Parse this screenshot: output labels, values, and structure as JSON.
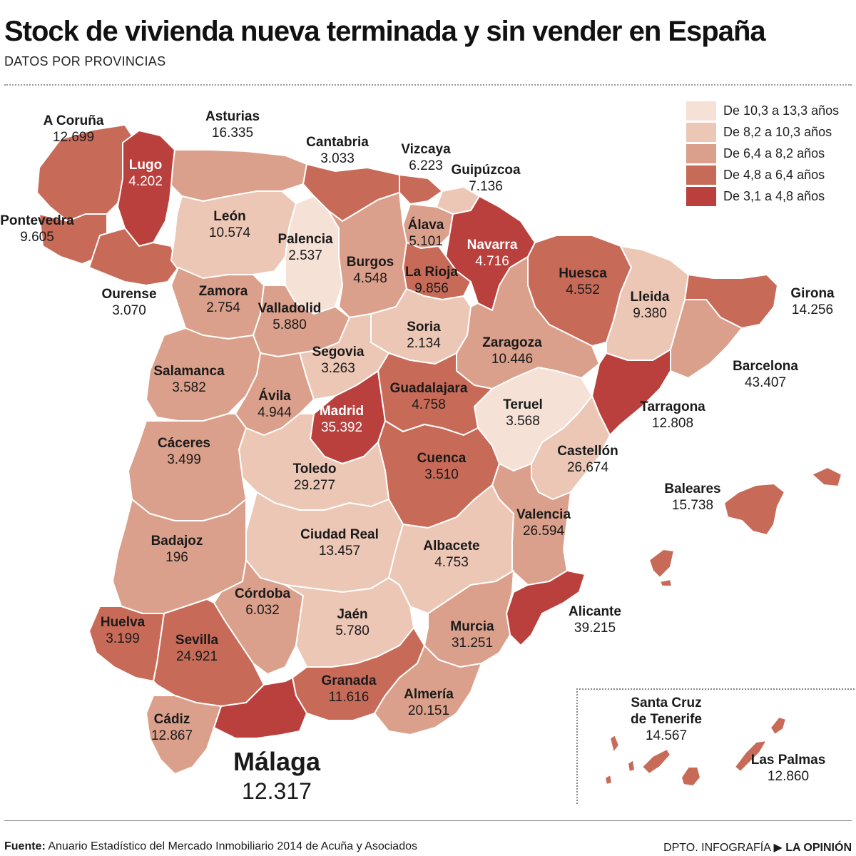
{
  "header": {
    "title": "Stock de vivienda nueva terminada y sin vender en España",
    "subtitle": "DATOS POR PROVINCIAS"
  },
  "legend": {
    "items": [
      {
        "label": "De 10,3 a 13,3 años",
        "color": "#f5e1d6"
      },
      {
        "label": "De 8,2 a 10,3 años",
        "color": "#ecc7b6"
      },
      {
        "label": "De 6,4 a 8,2 años",
        "color": "#dba08b"
      },
      {
        "label": "De 4,8 a 6,4 años",
        "color": "#c86a58"
      },
      {
        "label": "De 3,1 a 4,8 años",
        "color": "#b9403c"
      }
    ]
  },
  "provinces": {
    "a_coruna": {
      "name": "A Coruña",
      "value": "12.699"
    },
    "lugo": {
      "name": "Lugo",
      "value": "4.202"
    },
    "asturias": {
      "name": "Asturias",
      "value": "16.335"
    },
    "cantabria": {
      "name": "Cantabria",
      "value": "3.033"
    },
    "vizcaya": {
      "name": "Vizcaya",
      "value": "6.223"
    },
    "guipuzcoa": {
      "name": "Guipúzcoa",
      "value": "7.136"
    },
    "pontevedra": {
      "name": "Pontevedra",
      "value": "9.605"
    },
    "leon": {
      "name": "León",
      "value": "10.574"
    },
    "palencia": {
      "name": "Palencia",
      "value": "2.537"
    },
    "alava": {
      "name": "Álava",
      "value": "5.101"
    },
    "navarra": {
      "name": "Navarra",
      "value": "4.716"
    },
    "burgos": {
      "name": "Burgos",
      "value": "4.548"
    },
    "la_rioja": {
      "name": "La Rioja",
      "value": "9.856"
    },
    "huesca": {
      "name": "Huesca",
      "value": "4.552"
    },
    "ourense": {
      "name": "Ourense",
      "value": "3.070"
    },
    "zamora": {
      "name": "Zamora",
      "value": "2.754"
    },
    "valladolid": {
      "name": "Valladolid",
      "value": "5.880"
    },
    "lleida": {
      "name": "Lleida",
      "value": "9.380"
    },
    "girona": {
      "name": "Girona",
      "value": "14.256"
    },
    "soria": {
      "name": "Soria",
      "value": "2.134"
    },
    "segovia": {
      "name": "Segovia",
      "value": "3.263"
    },
    "zaragoza": {
      "name": "Zaragoza",
      "value": "10.446"
    },
    "salamanca": {
      "name": "Salamanca",
      "value": "3.582"
    },
    "barcelona": {
      "name": "Barcelona",
      "value": "43.407"
    },
    "guadalajara": {
      "name": "Guadalajara",
      "value": "4.758"
    },
    "avila": {
      "name": "Ávila",
      "value": "4.944"
    },
    "teruel": {
      "name": "Teruel",
      "value": "3.568"
    },
    "tarragona": {
      "name": "Tarragona",
      "value": "12.808"
    },
    "madrid": {
      "name": "Madrid",
      "value": "35.392"
    },
    "caceres": {
      "name": "Cáceres",
      "value": "3.499"
    },
    "cuenca": {
      "name": "Cuenca",
      "value": "3.510"
    },
    "castellon": {
      "name": "Castellón",
      "value": "26.674"
    },
    "toledo": {
      "name": "Toledo",
      "value": "29.277"
    },
    "baleares": {
      "name": "Baleares",
      "value": "15.738"
    },
    "valencia": {
      "name": "Valencia",
      "value": "26.594"
    },
    "ciudad_real": {
      "name": "Ciudad Real",
      "value": "13.457"
    },
    "badajoz": {
      "name": "Badajoz",
      "value": "196"
    },
    "albacete": {
      "name": "Albacete",
      "value": "4.753"
    },
    "cordoba": {
      "name": "Córdoba",
      "value": "6.032"
    },
    "alicante": {
      "name": "Alicante",
      "value": "39.215"
    },
    "jaen": {
      "name": "Jaén",
      "value": "5.780"
    },
    "huelva": {
      "name": "Huelva",
      "value": "3.199"
    },
    "murcia": {
      "name": "Murcia",
      "value": "31.251"
    },
    "sevilla": {
      "name": "Sevilla",
      "value": "24.921"
    },
    "granada": {
      "name": "Granada",
      "value": "11.616"
    },
    "almeria": {
      "name": "Almería",
      "value": "20.151"
    },
    "santa_cruz": {
      "name": "Santa Cruz de Tenerife",
      "name_line1": "Santa Cruz",
      "name_line2": "de Tenerife",
      "value": "14.567"
    },
    "las_palmas": {
      "name": "Las Palmas",
      "value": "12.860"
    },
    "cadiz": {
      "name": "Cádiz",
      "value": "12.867"
    },
    "malaga": {
      "name": "Málaga",
      "value": "12.317"
    }
  },
  "footer": {
    "source_label": "Fuente:",
    "source_text": "Anuario Estadístico del Mercado Inmobiliario 2014 de Acuña y Asociados",
    "credit_dept": "DPTO. INFOGRAFÍA",
    "credit_arrow": "▶",
    "credit_paper": "LA OPINIÓN"
  }
}
